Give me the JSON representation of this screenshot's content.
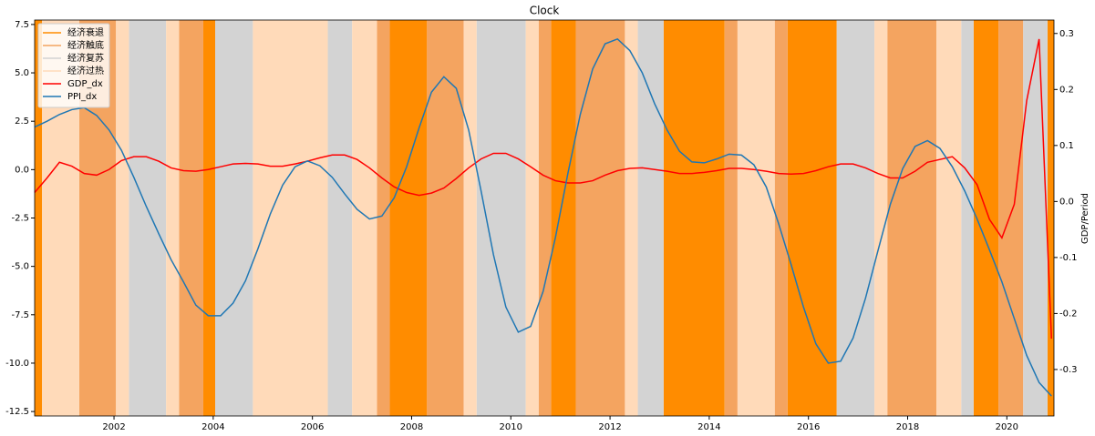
{
  "chart_data": {
    "type": "line",
    "title": "Clock",
    "y2label": "GDP/Period",
    "xlim": [
      2000.4,
      2020.95
    ],
    "ylim": [
      -12.73,
      7.73
    ],
    "y2lim": [
      -0.383,
      0.324
    ],
    "xticks": [
      2002,
      2004,
      2006,
      2008,
      2010,
      2012,
      2014,
      2016,
      2018,
      2020
    ],
    "yticks": [
      7.5,
      {
        "value": 5,
        "label": "5.0"
      },
      2.5,
      {
        "value": 0,
        "label": "0.0"
      },
      -2.5,
      {
        "value": -5,
        "label": "-5.0"
      },
      -7.5,
      {
        "value": -10,
        "label": "-10.0"
      },
      -12.5
    ],
    "y2ticks": [
      0.3,
      0.2,
      0.1,
      {
        "value": 0,
        "label": "0.0"
      },
      -0.1,
      -0.2,
      -0.3
    ],
    "legend": "upper left",
    "phases": [
      {
        "name": "经济衰退",
        "color": "#ff8c00",
        "intervals": [
          [
            2000.4,
            2000.55
          ],
          [
            2003.8,
            2004.04
          ],
          [
            2007.56,
            2008.31
          ],
          [
            2010.81,
            2011.31
          ],
          [
            2013.08,
            2014.31
          ],
          [
            2015.58,
            2016.57
          ],
          [
            2019.33,
            2019.83
          ],
          [
            2020.82,
            2020.95
          ]
        ]
      },
      {
        "name": "经济触底",
        "color": "#f4a460",
        "intervals": [
          [
            2001.3,
            2002.04
          ],
          [
            2003.31,
            2003.8
          ],
          [
            2007.3,
            2007.56
          ],
          [
            2008.31,
            2009.05
          ],
          [
            2010.56,
            2010.81
          ],
          [
            2011.31,
            2012.3
          ],
          [
            2014.31,
            2014.57
          ],
          [
            2015.32,
            2015.58
          ],
          [
            2017.59,
            2018.58
          ],
          [
            2019.83,
            2020.33
          ]
        ]
      },
      {
        "name": "经济复苏",
        "color": "#d3d3d3",
        "intervals": [
          [
            2002.3,
            2003.05
          ],
          [
            2004.04,
            2004.8
          ],
          [
            2006.31,
            2006.8
          ],
          [
            2009.31,
            2010.3
          ],
          [
            2012.56,
            2013.08
          ],
          [
            2016.57,
            2017.33
          ],
          [
            2019.08,
            2019.33
          ],
          [
            2020.33,
            2020.82
          ]
        ]
      },
      {
        "name": "经济过热",
        "color": "#ffdab9",
        "intervals": [
          [
            2000.55,
            2001.3
          ],
          [
            2002.04,
            2002.3
          ],
          [
            2003.05,
            2003.31
          ],
          [
            2004.8,
            2006.31
          ],
          [
            2006.8,
            2007.3
          ],
          [
            2009.05,
            2009.31
          ],
          [
            2010.3,
            2010.56
          ],
          [
            2012.3,
            2012.56
          ],
          [
            2014.57,
            2015.32
          ],
          [
            2017.33,
            2017.59
          ],
          [
            2018.58,
            2019.08
          ]
        ]
      }
    ],
    "x": [
      2000.4,
      2000.65,
      2000.9,
      2001.15,
      2001.4,
      2001.65,
      2001.9,
      2002.15,
      2002.4,
      2002.65,
      2002.9,
      2003.15,
      2003.4,
      2003.65,
      2003.9,
      2004.15,
      2004.4,
      2004.65,
      2004.9,
      2005.15,
      2005.4,
      2005.65,
      2005.9,
      2006.15,
      2006.4,
      2006.65,
      2006.9,
      2007.15,
      2007.4,
      2007.65,
      2007.9,
      2008.15,
      2008.4,
      2008.65,
      2008.9,
      2009.15,
      2009.4,
      2009.65,
      2009.9,
      2010.15,
      2010.4,
      2010.65,
      2010.9,
      2011.15,
      2011.4,
      2011.65,
      2011.9,
      2012.15,
      2012.4,
      2012.65,
      2012.9,
      2013.15,
      2013.4,
      2013.65,
      2013.9,
      2014.15,
      2014.4,
      2014.65,
      2014.9,
      2015.15,
      2015.4,
      2015.65,
      2015.9,
      2016.15,
      2016.4,
      2016.65,
      2016.9,
      2017.15,
      2017.4,
      2017.65,
      2017.9,
      2018.15,
      2018.4,
      2018.65,
      2018.9,
      2019.15,
      2019.4,
      2019.65,
      2019.9,
      2020.15,
      2020.4,
      2020.65,
      2020.9
    ],
    "series": [
      {
        "name": "GDP_dx",
        "color": "#ff0000",
        "axis": "y2",
        "values": [
          0.016,
          0.042,
          0.07,
          0.063,
          0.05,
          0.047,
          0.057,
          0.073,
          0.08,
          0.08,
          0.072,
          0.06,
          0.055,
          0.054,
          0.057,
          0.062,
          0.067,
          0.068,
          0.067,
          0.063,
          0.063,
          0.067,
          0.072,
          0.078,
          0.083,
          0.083,
          0.075,
          0.06,
          0.042,
          0.026,
          0.016,
          0.011,
          0.015,
          0.024,
          0.041,
          0.06,
          0.076,
          0.086,
          0.086,
          0.076,
          0.062,
          0.047,
          0.037,
          0.033,
          0.033,
          0.037,
          0.047,
          0.055,
          0.059,
          0.06,
          0.057,
          0.054,
          0.05,
          0.05,
          0.052,
          0.055,
          0.059,
          0.059,
          0.057,
          0.054,
          0.05,
          0.049,
          0.05,
          0.055,
          0.062,
          0.067,
          0.067,
          0.06,
          0.05,
          0.042,
          0.042,
          0.054,
          0.07,
          0.075,
          0.08,
          0.06,
          0.03,
          -0.032,
          -0.065,
          -0.005,
          0.18,
          0.29,
          -0.245
        ]
      },
      {
        "name": "PPI_dx",
        "color": "#1f77b4",
        "values": [
          2.2,
          2.5,
          2.85,
          3.1,
          3.2,
          2.8,
          2.05,
          1.0,
          -0.4,
          -1.9,
          -3.3,
          -4.65,
          -5.8,
          -7.0,
          -7.55,
          -7.55,
          -6.9,
          -5.75,
          -4.1,
          -2.3,
          -0.8,
          0.15,
          0.45,
          0.2,
          -0.4,
          -1.25,
          -2.05,
          -2.55,
          -2.4,
          -1.45,
          0.15,
          2.15,
          4.0,
          4.8,
          4.2,
          2.05,
          -1.1,
          -4.4,
          -7.1,
          -8.4,
          -8.1,
          -6.3,
          -3.5,
          -0.2,
          2.85,
          5.2,
          6.5,
          6.75,
          6.15,
          5.0,
          3.4,
          2.05,
          0.95,
          0.4,
          0.35,
          0.55,
          0.8,
          0.75,
          0.25,
          -0.9,
          -2.8,
          -4.9,
          -7.1,
          -9.0,
          -10.0,
          -9.9,
          -8.7,
          -6.65,
          -4.2,
          -1.8,
          0.05,
          1.2,
          1.5,
          1.1,
          0.15,
          -1.1,
          -2.55,
          -4.15,
          -5.8,
          -7.7,
          -9.6,
          -11.0,
          -11.7
        ]
      }
    ]
  }
}
